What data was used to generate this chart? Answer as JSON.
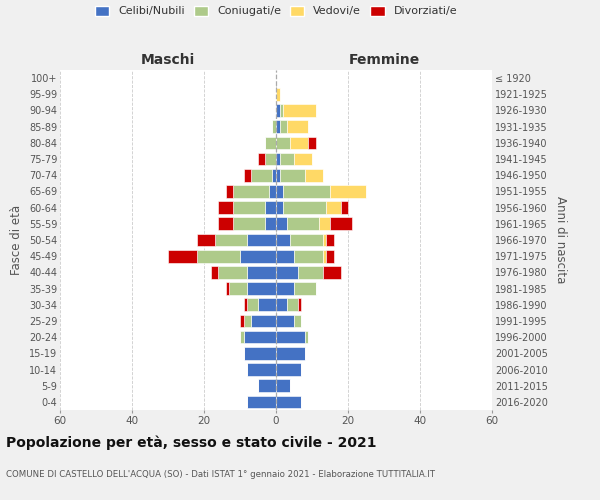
{
  "age_groups": [
    "0-4",
    "5-9",
    "10-14",
    "15-19",
    "20-24",
    "25-29",
    "30-34",
    "35-39",
    "40-44",
    "45-49",
    "50-54",
    "55-59",
    "60-64",
    "65-69",
    "70-74",
    "75-79",
    "80-84",
    "85-89",
    "90-94",
    "95-99",
    "100+"
  ],
  "birth_years": [
    "2016-2020",
    "2011-2015",
    "2006-2010",
    "2001-2005",
    "1996-2000",
    "1991-1995",
    "1986-1990",
    "1981-1985",
    "1976-1980",
    "1971-1975",
    "1966-1970",
    "1961-1965",
    "1956-1960",
    "1951-1955",
    "1946-1950",
    "1941-1945",
    "1936-1940",
    "1931-1935",
    "1926-1930",
    "1921-1925",
    "≤ 1920"
  ],
  "males": {
    "celibi": [
      8,
      5,
      8,
      9,
      9,
      7,
      5,
      8,
      8,
      10,
      8,
      3,
      3,
      2,
      1,
      0,
      0,
      0,
      0,
      0,
      0
    ],
    "coniugati": [
      0,
      0,
      0,
      0,
      1,
      2,
      3,
      5,
      8,
      12,
      9,
      9,
      9,
      10,
      6,
      3,
      3,
      1,
      0,
      0,
      0
    ],
    "vedovi": [
      0,
      0,
      0,
      0,
      0,
      0,
      0,
      0,
      0,
      0,
      0,
      0,
      0,
      0,
      0,
      0,
      0,
      0,
      0,
      0,
      0
    ],
    "divorziati": [
      0,
      0,
      0,
      0,
      0,
      1,
      1,
      1,
      2,
      8,
      5,
      4,
      4,
      2,
      2,
      2,
      0,
      0,
      0,
      0,
      0
    ]
  },
  "females": {
    "nubili": [
      7,
      4,
      7,
      8,
      8,
      5,
      3,
      5,
      6,
      5,
      4,
      3,
      2,
      2,
      1,
      1,
      0,
      1,
      1,
      0,
      0
    ],
    "coniugate": [
      0,
      0,
      0,
      0,
      1,
      2,
      3,
      6,
      7,
      8,
      9,
      9,
      12,
      13,
      7,
      4,
      4,
      2,
      1,
      0,
      0
    ],
    "vedove": [
      0,
      0,
      0,
      0,
      0,
      0,
      0,
      0,
      0,
      1,
      1,
      3,
      4,
      10,
      5,
      5,
      5,
      6,
      9,
      1,
      0
    ],
    "divorziate": [
      0,
      0,
      0,
      0,
      0,
      0,
      1,
      0,
      5,
      2,
      2,
      6,
      2,
      0,
      0,
      0,
      2,
      0,
      0,
      0,
      0
    ]
  },
  "colors": {
    "celibi": "#4472C4",
    "coniugati": "#AECA8A",
    "vedovi": "#FFD966",
    "divorziati": "#CC0000"
  },
  "xlim": 60,
  "title": "Popolazione per età, sesso e stato civile - 2021",
  "subtitle": "COMUNE DI CASTELLO DELL'ACQUA (SO) - Dati ISTAT 1° gennaio 2021 - Elaborazione TUTTITALIA.IT",
  "xlabel_left": "Maschi",
  "xlabel_right": "Femmine",
  "ylabel_left": "Fasce di età",
  "ylabel_right": "Anni di nascita",
  "bg_color": "#f0f0f0",
  "plot_bg": "#ffffff",
  "legend_labels": [
    "Celibi/Nubili",
    "Coniugati/e",
    "Vedovi/e",
    "Divorziati/e"
  ]
}
